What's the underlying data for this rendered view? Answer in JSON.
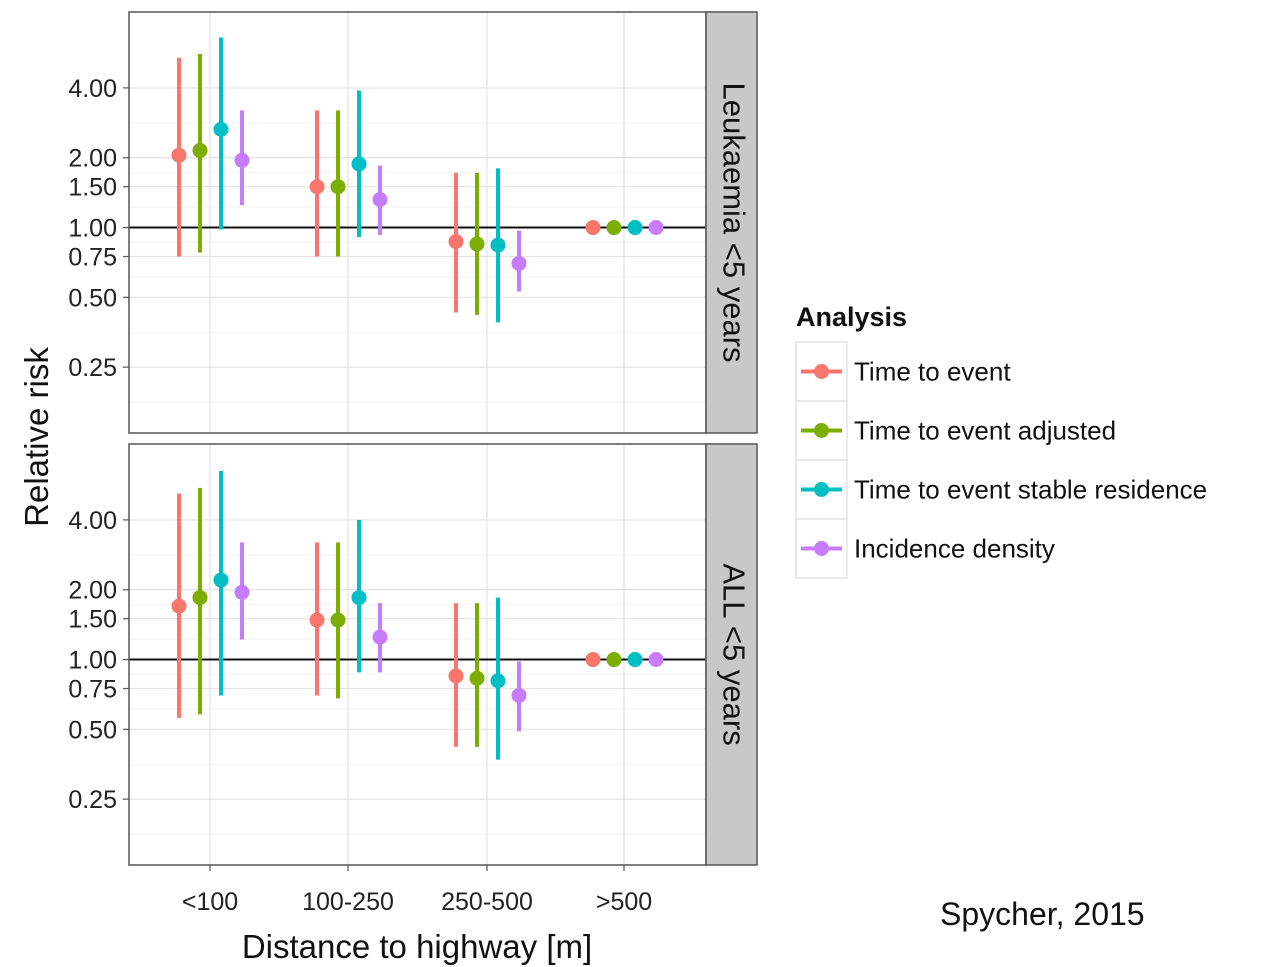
{
  "chart_data": {
    "type": "scatter",
    "ylabel": "Relative risk",
    "xlabel": "Distance to highway [m]",
    "y_scale": "log",
    "ylim": [
      0.13,
      8.5
    ],
    "y_ticks": [
      {
        "value": 0.25,
        "label": "0.25"
      },
      {
        "value": 0.5,
        "label": "0.50"
      },
      {
        "value": 0.75,
        "label": "0.75"
      },
      {
        "value": 1.0,
        "label": "1.00"
      },
      {
        "value": 1.5,
        "label": "1.50"
      },
      {
        "value": 2.0,
        "label": "2.00"
      },
      {
        "value": 4.0,
        "label": "4.00"
      }
    ],
    "reference_line": 1.0,
    "categories": [
      "<100",
      "100-250",
      "250-500",
      ">500"
    ],
    "grid": true,
    "legend": {
      "title": "Analysis",
      "position": "right"
    },
    "series": [
      {
        "name": "Time to event",
        "color": "#F8766D"
      },
      {
        "name": "Time to event adjusted",
        "color": "#7CAE00"
      },
      {
        "name": "Time to event stable residence",
        "color": "#00BFC4"
      },
      {
        "name": "Incidence density",
        "color": "#C77CFF"
      }
    ],
    "panels": [
      {
        "label": "Leukaemia <5 years",
        "data": [
          [
            {
              "est": 2.05,
              "lo": 0.75,
              "hi": 5.4
            },
            {
              "est": 1.5,
              "lo": 0.75,
              "hi": 3.2
            },
            {
              "est": 0.87,
              "lo": 0.43,
              "hi": 1.72
            },
            {
              "est": 1.0,
              "lo": 1.0,
              "hi": 1.0
            }
          ],
          [
            {
              "est": 2.15,
              "lo": 0.78,
              "hi": 5.6
            },
            {
              "est": 1.5,
              "lo": 0.75,
              "hi": 3.2
            },
            {
              "est": 0.85,
              "lo": 0.42,
              "hi": 1.72
            },
            {
              "est": 1.0,
              "lo": 1.0,
              "hi": 1.0
            }
          ],
          [
            {
              "est": 2.65,
              "lo": 0.98,
              "hi": 6.6
            },
            {
              "est": 1.88,
              "lo": 0.91,
              "hi": 3.9
            },
            {
              "est": 0.84,
              "lo": 0.39,
              "hi": 1.8
            },
            {
              "est": 1.0,
              "lo": 1.0,
              "hi": 1.0
            }
          ],
          [
            {
              "est": 1.95,
              "lo": 1.25,
              "hi": 3.2
            },
            {
              "est": 1.32,
              "lo": 0.93,
              "hi": 1.85
            },
            {
              "est": 0.7,
              "lo": 0.53,
              "hi": 0.97
            },
            {
              "est": 1.0,
              "lo": 1.0,
              "hi": 1.0
            }
          ]
        ]
      },
      {
        "label": "ALL <5 years",
        "data": [
          [
            {
              "est": 1.7,
              "lo": 0.56,
              "hi": 5.2
            },
            {
              "est": 1.48,
              "lo": 0.7,
              "hi": 3.2
            },
            {
              "est": 0.85,
              "lo": 0.42,
              "hi": 1.75
            },
            {
              "est": 1.0,
              "lo": 1.0,
              "hi": 1.0
            }
          ],
          [
            {
              "est": 1.85,
              "lo": 0.58,
              "hi": 5.5
            },
            {
              "est": 1.48,
              "lo": 0.68,
              "hi": 3.2
            },
            {
              "est": 0.83,
              "lo": 0.42,
              "hi": 1.75
            },
            {
              "est": 1.0,
              "lo": 1.0,
              "hi": 1.0
            }
          ],
          [
            {
              "est": 2.2,
              "lo": 0.7,
              "hi": 6.5
            },
            {
              "est": 1.85,
              "lo": 0.88,
              "hi": 4.0
            },
            {
              "est": 0.81,
              "lo": 0.37,
              "hi": 1.85
            },
            {
              "est": 1.0,
              "lo": 1.0,
              "hi": 1.0
            }
          ],
          [
            {
              "est": 1.95,
              "lo": 1.22,
              "hi": 3.2
            },
            {
              "est": 1.25,
              "lo": 0.88,
              "hi": 1.75
            },
            {
              "est": 0.7,
              "lo": 0.49,
              "hi": 0.98
            },
            {
              "est": 1.0,
              "lo": 1.0,
              "hi": 1.0
            }
          ]
        ]
      }
    ]
  },
  "credit": "Spycher, 2015"
}
